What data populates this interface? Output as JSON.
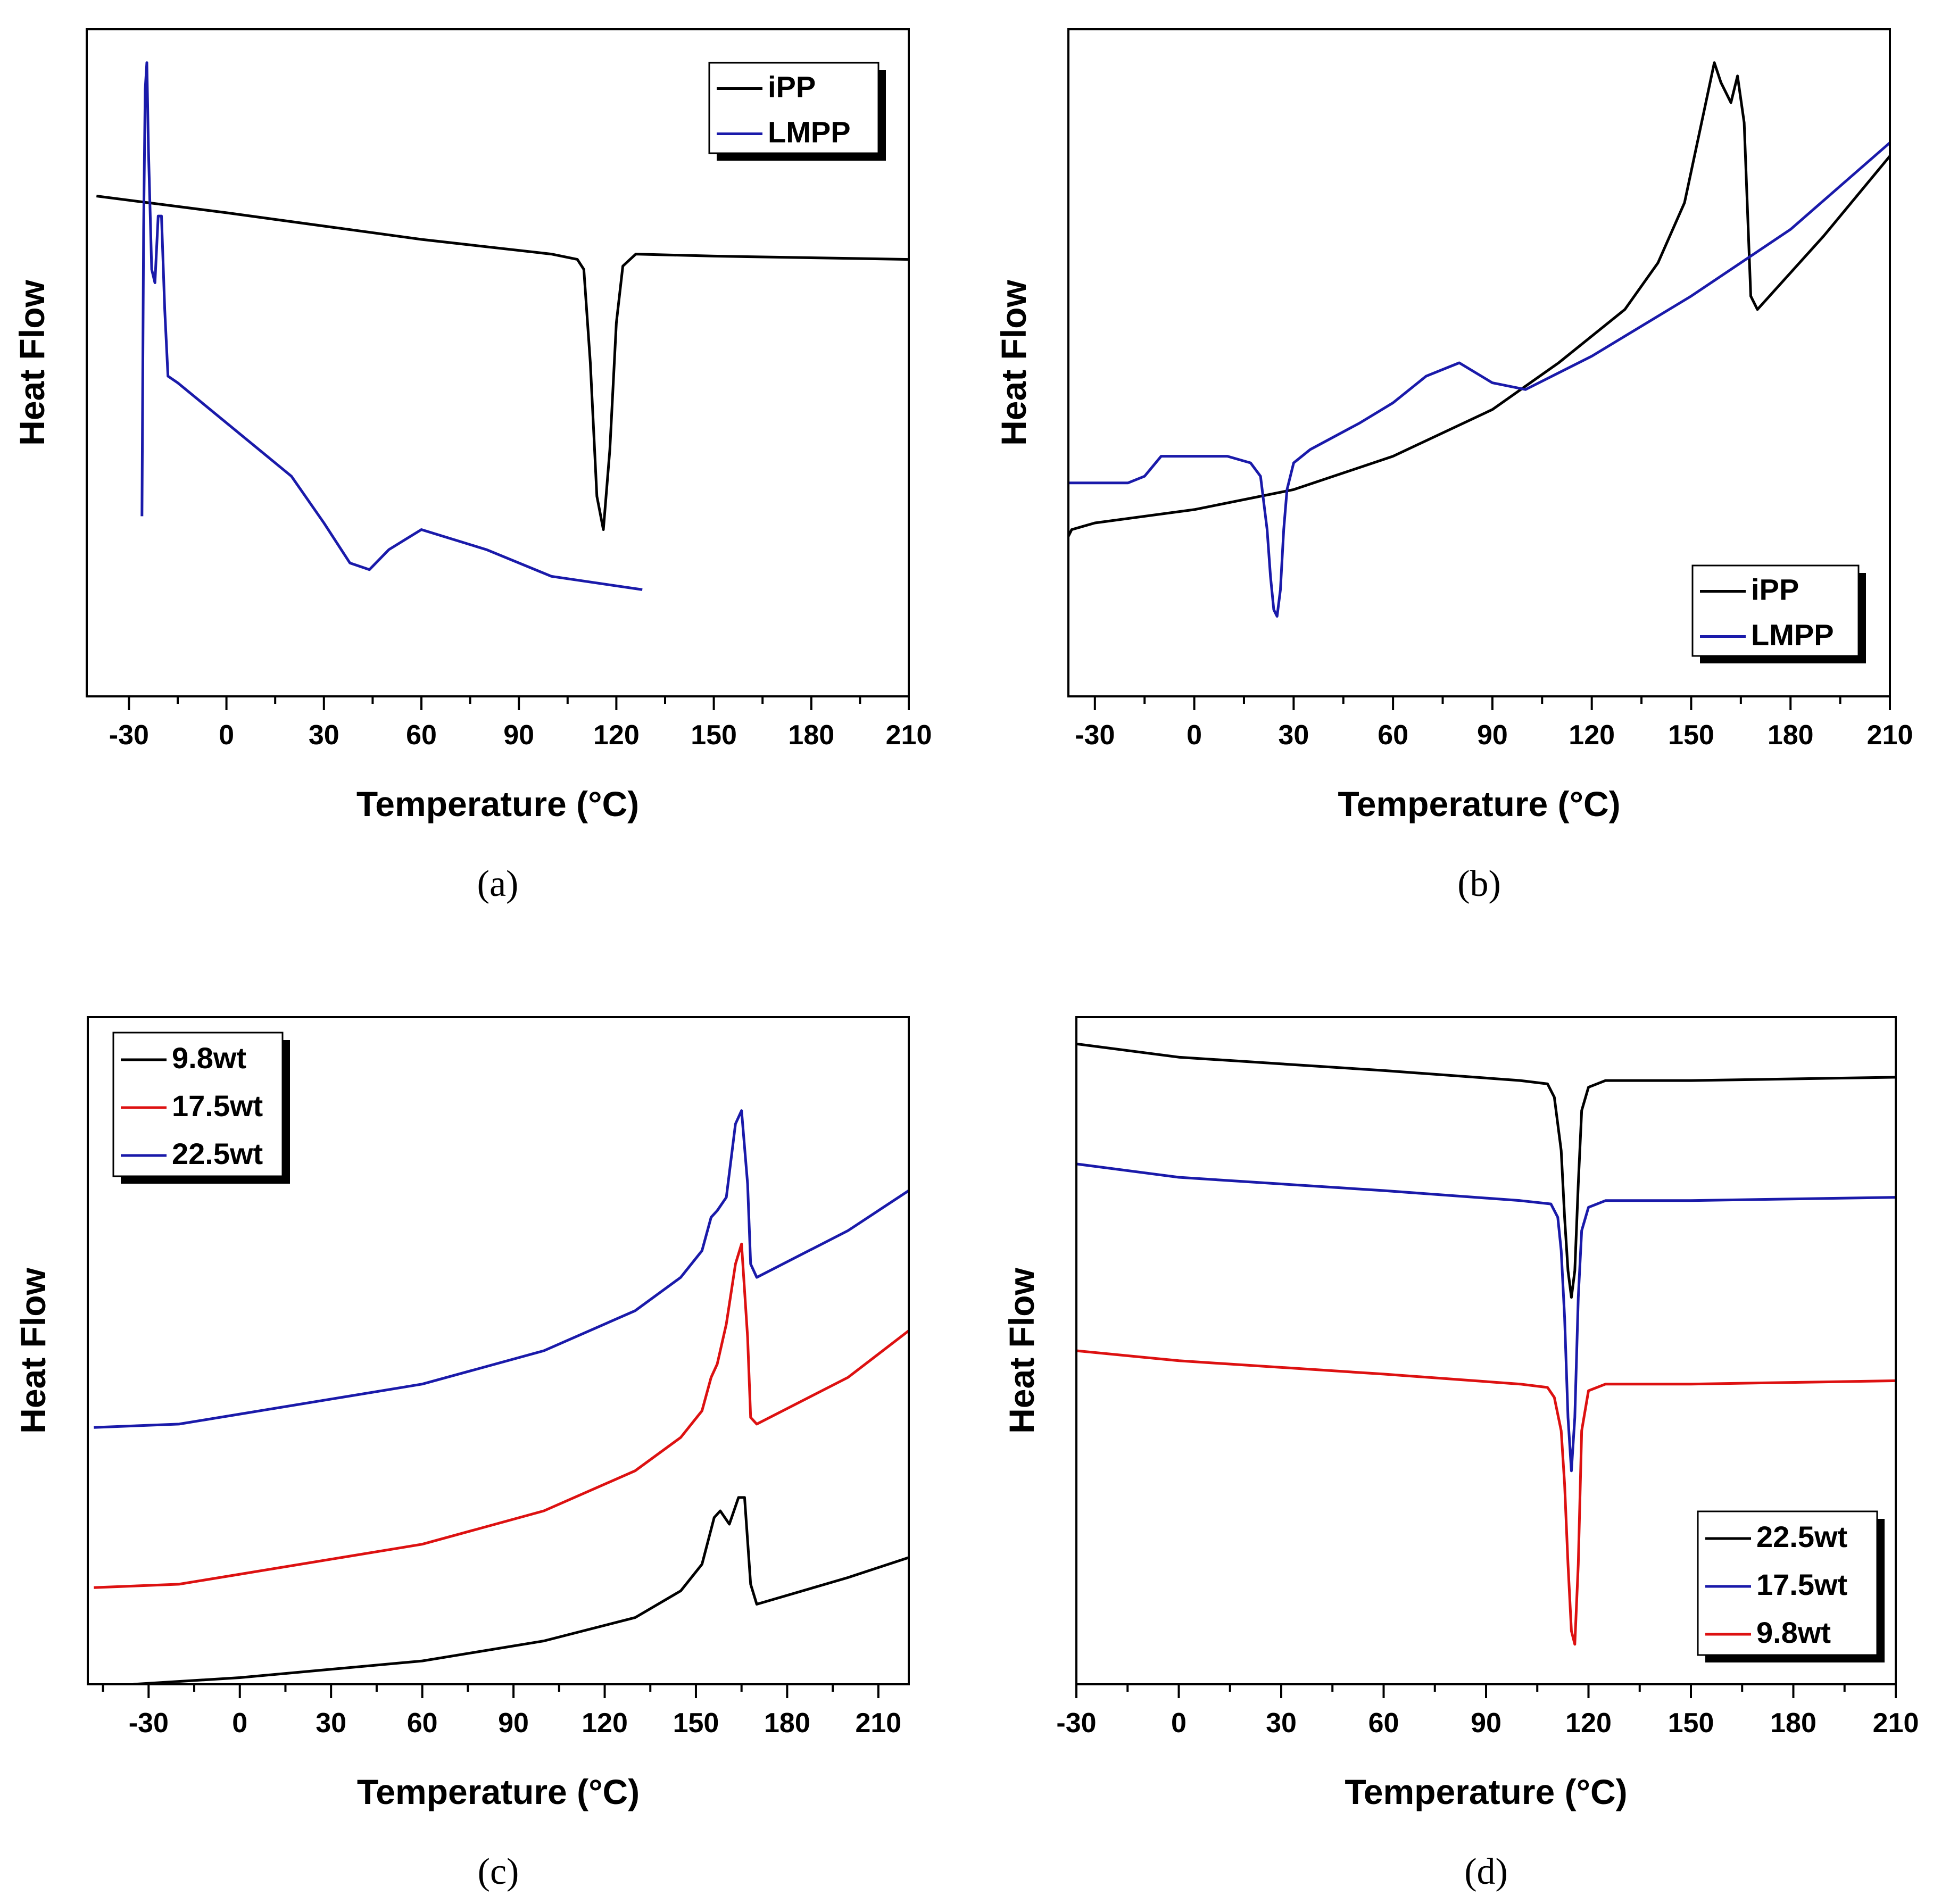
{
  "chart_data": [
    {
      "panel_label": "(a)",
      "type": "line",
      "xlabel": "Temperature (°C)",
      "ylabel": "Heat Flow",
      "xlim": [
        -43,
        210
      ],
      "xticks": [
        -30,
        0,
        30,
        60,
        90,
        120,
        150,
        180,
        210
      ],
      "ylim": [
        0,
        100
      ],
      "legend_position": "top-right",
      "series": [
        {
          "name": "iPP",
          "color": "#000000",
          "x": [
            -40,
            0,
            60,
            100,
            108,
            110,
            112,
            114,
            116,
            118,
            120,
            122,
            126,
            150,
            210
          ],
          "y": [
            75,
            72.5,
            68.5,
            66.3,
            65.5,
            64,
            50,
            30,
            25,
            37,
            56,
            64.5,
            66.3,
            66,
            65.5
          ]
        },
        {
          "name": "LMPP",
          "color": "#1a1aaa",
          "x": [
            -26,
            -25.5,
            -25,
            -24.5,
            -24,
            -23,
            -22,
            -21,
            -20,
            -19,
            -18,
            -15,
            -5,
            5,
            20,
            30,
            38,
            44,
            50,
            60,
            80,
            100,
            128
          ],
          "y": [
            27,
            70,
            91,
            95,
            82,
            64,
            62,
            72,
            72,
            58,
            48,
            47,
            43,
            39,
            33,
            26,
            20,
            19,
            22,
            25,
            22,
            18,
            16
          ]
        }
      ]
    },
    {
      "panel_label": "(b)",
      "type": "line",
      "xlabel": "Temperature (°C)",
      "ylabel": "Heat Flow",
      "xlim": [
        -38,
        210
      ],
      "xticks": [
        -30,
        0,
        30,
        60,
        90,
        120,
        150,
        180,
        210
      ],
      "ylim": [
        0,
        100
      ],
      "legend_position": "bottom-right",
      "series": [
        {
          "name": "iPP",
          "color": "#000000",
          "x": [
            -38,
            -37,
            -30,
            0,
            30,
            60,
            90,
            110,
            130,
            140,
            148,
            154,
            157,
            159,
            162,
            164,
            166,
            168,
            170,
            190,
            210
          ],
          "y": [
            24,
            25,
            26,
            28,
            31,
            36,
            43,
            50,
            58,
            65,
            74,
            88,
            95,
            92,
            89,
            93,
            86,
            60,
            58,
            69,
            81
          ]
        },
        {
          "name": "LMPP",
          "color": "#1a1aaa",
          "x": [
            -38,
            -20,
            -15,
            -10,
            -7,
            0,
            10,
            17,
            20,
            22,
            23,
            24,
            25,
            26,
            27,
            28,
            30,
            35,
            50,
            60,
            70,
            80,
            90,
            100,
            120,
            150,
            180,
            210
          ],
          "y": [
            32,
            32,
            33,
            36,
            36,
            36,
            36,
            35,
            33,
            25,
            18,
            13,
            12,
            16,
            25,
            31,
            35,
            37,
            41,
            44,
            48,
            50,
            47,
            46,
            51,
            60,
            70,
            83
          ]
        }
      ]
    },
    {
      "panel_label": "(c)",
      "type": "line",
      "xlabel": "Temperature (°C)",
      "ylabel": "Heat Flow",
      "xlim": [
        -50,
        220
      ],
      "xticks": [
        -30,
        0,
        30,
        60,
        90,
        120,
        150,
        180,
        210
      ],
      "ylim": [
        0,
        100
      ],
      "legend_position": "top-left",
      "series": [
        {
          "name": "9.8wt",
          "color": "#000000",
          "x": [
            -35,
            0,
            60,
            100,
            130,
            145,
            152,
            156,
            158,
            161,
            164,
            166,
            168,
            170,
            200,
            220
          ],
          "y": [
            0,
            1,
            3.5,
            6.5,
            10,
            14,
            18,
            25,
            26,
            24,
            28,
            28,
            15,
            12,
            16,
            19
          ]
        },
        {
          "name": "17.5wt",
          "color": "#dd1111",
          "x": [
            -48,
            -20,
            0,
            60,
            100,
            130,
            145,
            152,
            155,
            157,
            160,
            163,
            165,
            167,
            168,
            170,
            200,
            220
          ],
          "y": [
            14.5,
            15,
            16.5,
            21,
            26,
            32,
            37,
            41,
            46,
            48,
            54,
            63,
            66,
            52,
            40,
            39,
            46,
            53
          ]
        },
        {
          "name": "22.5wt",
          "color": "#1a1aaa",
          "x": [
            -48,
            -20,
            0,
            60,
            100,
            130,
            145,
            152,
            155,
            157,
            160,
            163,
            165,
            167,
            168,
            170,
            200,
            220
          ],
          "y": [
            38.5,
            39,
            40.5,
            45,
            50,
            56,
            61,
            65,
            70,
            71,
            73,
            84,
            86,
            75,
            63,
            61,
            68,
            74
          ]
        }
      ]
    },
    {
      "panel_label": "(d)",
      "type": "line",
      "xlabel": "Temperature (°C)",
      "ylabel": "Heat Flow",
      "xlim": [
        -30,
        210
      ],
      "xticks": [
        -30,
        0,
        30,
        60,
        90,
        120,
        150,
        180,
        210
      ],
      "ylim": [
        0,
        100
      ],
      "legend_position": "bottom-right",
      "series": [
        {
          "name": "22.5wt",
          "color": "#000000",
          "x": [
            -30,
            0,
            60,
            100,
            108,
            110,
            112,
            113,
            114,
            115,
            116,
            117,
            118,
            120,
            125,
            150,
            210
          ],
          "y": [
            96,
            94,
            92,
            90.5,
            90,
            88,
            80,
            70,
            62,
            58,
            62,
            75,
            86,
            89.5,
            90.5,
            90.5,
            91
          ]
        },
        {
          "name": "17.5wt",
          "color": "#1a1aaa",
          "x": [
            -30,
            0,
            60,
            100,
            109,
            111,
            112,
            113,
            114,
            115,
            116,
            117,
            118,
            120,
            125,
            150,
            210
          ],
          "y": [
            78,
            76,
            74,
            72.5,
            72,
            70,
            65,
            55,
            40,
            32,
            40,
            58,
            68,
            71.5,
            72.5,
            72.5,
            73
          ]
        },
        {
          "name": "9.8wt",
          "color": "#dd1111",
          "x": [
            -30,
            0,
            60,
            100,
            108,
            110,
            112,
            113,
            114,
            115,
            116,
            117,
            118,
            120,
            125,
            150,
            210
          ],
          "y": [
            50,
            48.5,
            46.5,
            45,
            44.5,
            43,
            38,
            30,
            18,
            8,
            6,
            18,
            38,
            44,
            45,
            45,
            45.5
          ]
        }
      ]
    }
  ]
}
